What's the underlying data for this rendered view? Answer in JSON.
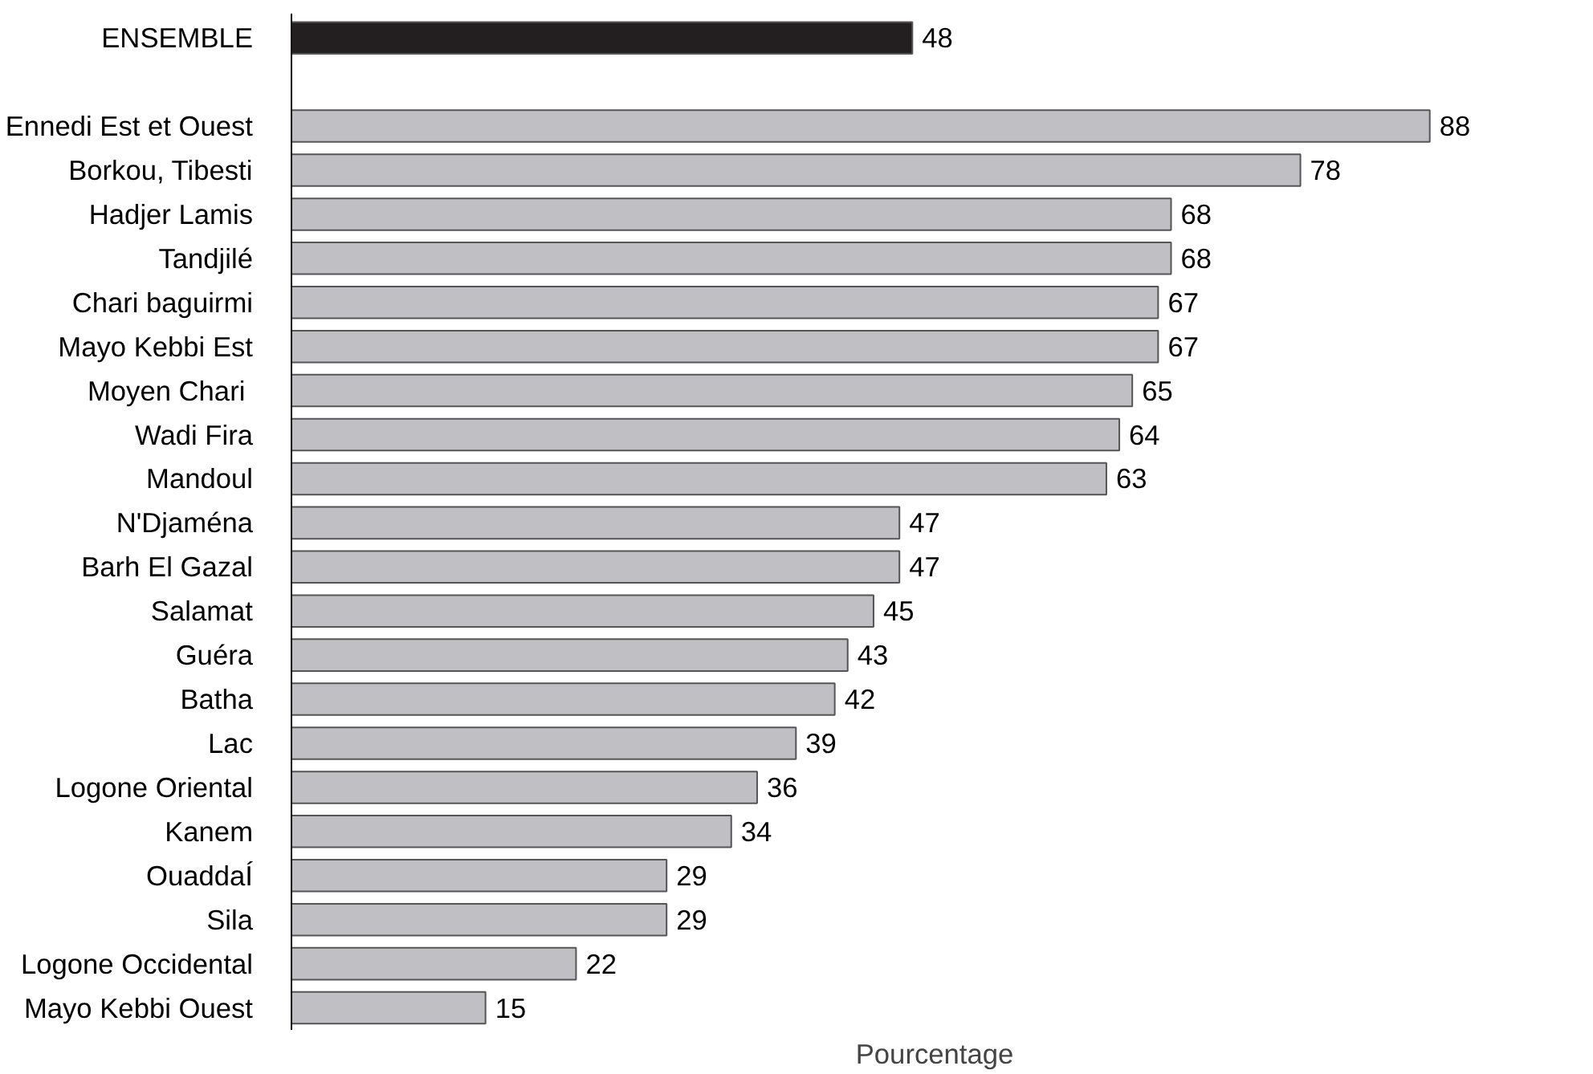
{
  "chart_data": {
    "type": "bar",
    "orientation": "horizontal",
    "xlabel": "Pourcentage",
    "data_labels": true,
    "tick_labels": "y",
    "categories": [
      "ENSEMBLE",
      null,
      "Ennedi Est et Ouest",
      "Borkou, Tibesti",
      "Hadjer Lamis",
      "Tandjilé",
      "Chari baguirmi",
      "Mayo Kebbi Est",
      "Moyen Chari ",
      "Wadi Fira",
      "Mandoul",
      "N'Djaména",
      "Barh El Gazal",
      "Salamat",
      "Guéra",
      "Batha",
      "Lac",
      "Logone Oriental",
      "Kanem",
      "OuaddaÍ",
      "Sila",
      "Logone Occidental",
      "Mayo Kebbi Ouest"
    ],
    "values": [
      48,
      null,
      88,
      78,
      68,
      68,
      67,
      67,
      65,
      64,
      63,
      47,
      47,
      45,
      43,
      42,
      39,
      36,
      34,
      29,
      29,
      22,
      15
    ],
    "colors": [
      "#231f20",
      null,
      "#c0c0c4",
      "#c0c0c4",
      "#c0c0c4",
      "#c0c0c4",
      "#c0c0c4",
      "#c0c0c4",
      "#c0c0c4",
      "#c0c0c4",
      "#c0c0c4",
      "#c0c0c4",
      "#c0c0c4",
      "#c0c0c4",
      "#c0c0c4",
      "#c0c0c4",
      "#c0c0c4",
      "#c0c0c4",
      "#c0c0c4",
      "#c0c0c4",
      "#c0c0c4",
      "#c0c0c4",
      "#c0c0c4"
    ]
  }
}
